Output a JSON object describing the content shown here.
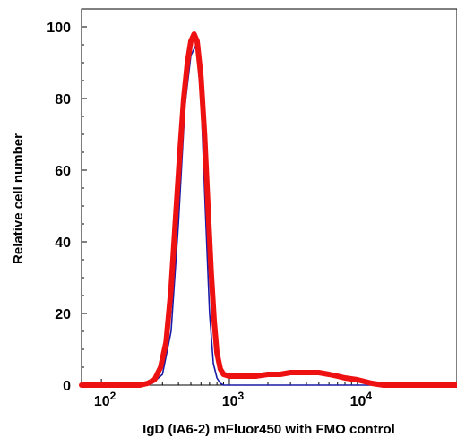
{
  "chart_data": {
    "type": "line",
    "title": "",
    "xlabel": "IgD (IA6-2) mFluor450 with FMO control",
    "ylabel": "Relative cell number",
    "x_scale": "log",
    "xlim": [
      70,
      60000
    ],
    "ylim": [
      0,
      105
    ],
    "y_ticks": [
      0,
      20,
      40,
      60,
      80,
      100
    ],
    "y_tick_labels": [
      "0",
      "20",
      "40",
      "60",
      "80",
      "100"
    ],
    "x_ticks": [
      {
        "value": 100,
        "base": "10",
        "exp": "2"
      },
      {
        "value": 1000,
        "base": "10",
        "exp": "3"
      },
      {
        "value": 10000,
        "base": "10",
        "exp": "4"
      }
    ],
    "grid": false,
    "legend": "none",
    "series": [
      {
        "color": "#1a1aa6",
        "x": [
          70,
          200,
          250,
          300,
          350,
          400,
          450,
          500,
          550,
          600,
          650,
          700,
          750,
          800,
          850,
          900,
          1000,
          1200,
          2000,
          5000,
          20000,
          60000
        ],
        "y": [
          0,
          0,
          0.5,
          3,
          15,
          45,
          78,
          92,
          95,
          80,
          48,
          20,
          6,
          2,
          0.5,
          0,
          0,
          0,
          0,
          0,
          0,
          0
        ]
      },
      {
        "color": "#ee1111",
        "x": [
          70,
          200,
          230,
          260,
          290,
          320,
          350,
          380,
          410,
          440,
          470,
          500,
          530,
          560,
          600,
          640,
          680,
          720,
          760,
          800,
          850,
          900,
          1000,
          1300,
          1600,
          2000,
          2500,
          3000,
          4000,
          5000,
          6000,
          7000,
          8000,
          10000,
          13000,
          16000,
          20000,
          60000
        ],
        "y": [
          0,
          0,
          0.5,
          1.5,
          5,
          12,
          27,
          47,
          65,
          80,
          90,
          96,
          98,
          96,
          86,
          70,
          50,
          32,
          18,
          9,
          4.5,
          3,
          2.5,
          2.5,
          2.5,
          3,
          3,
          3.5,
          3.5,
          3.5,
          3,
          2.5,
          2,
          1.5,
          0.5,
          0,
          0,
          0
        ]
      }
    ]
  }
}
